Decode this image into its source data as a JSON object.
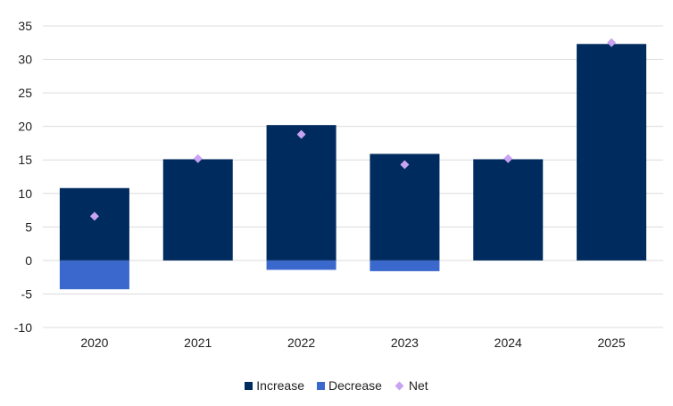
{
  "chart_data": {
    "type": "bar",
    "stacked": true,
    "title": "",
    "xlabel": "",
    "ylabel": "",
    "categories": [
      "2020",
      "2021",
      "2022",
      "2023",
      "2024",
      "2025"
    ],
    "series": [
      {
        "name": "Increase",
        "kind": "bar",
        "color": "#002B5E",
        "values": [
          10.8,
          15.1,
          20.2,
          15.9,
          15.1,
          32.3
        ]
      },
      {
        "name": "Decrease",
        "kind": "bar",
        "color": "#3A68CC",
        "values": [
          -4.3,
          0,
          -1.4,
          -1.6,
          0,
          0
        ]
      },
      {
        "name": "Net",
        "kind": "marker",
        "marker": "diamond",
        "color": "#C7A3F2",
        "values": [
          6.6,
          15.2,
          18.8,
          14.3,
          15.2,
          32.5
        ]
      }
    ],
    "ylim": [
      -10,
      35
    ],
    "yticks": [
      -10,
      -5,
      0,
      5,
      10,
      15,
      20,
      25,
      30,
      35
    ],
    "grid": true,
    "legend_position": "bottom"
  }
}
